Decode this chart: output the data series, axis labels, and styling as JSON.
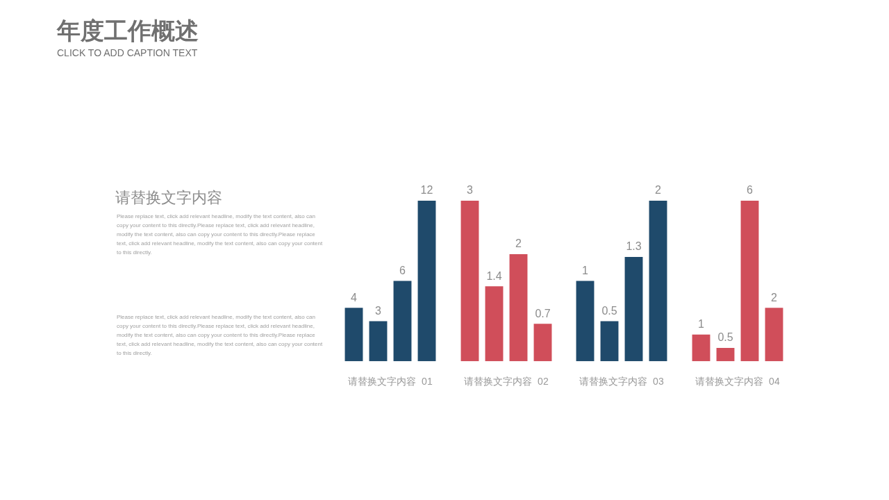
{
  "chart_data": [
    {
      "type": "other",
      "title": "年度工作概述",
      "subtitle": "CLICK TO ADD CAPTION TEXT",
      "annotations": [
        "请替换文字内容",
        "Please replace text, click add relevant headline, modify the text content, also can copy your content to this directly.Please replace text, click add relevant headline, modify the text content, also can copy your content to this directly.Please replace text, click add relevant headline, modify the text content, also can copy your content to this directly.",
        "Please replace text, click add relevant headline, modify the text content, also can copy your content to this directly.Please replace text, click add relevant headline, modify the text content, also can copy your content to this directly.Please replace text, click add relevant headline, modify the text content, also can copy your content to this directly."
      ]
    },
    {
      "type": "bar",
      "xlabel": "请替换文字内容  01",
      "categories": [
        null,
        null,
        null,
        null
      ],
      "values": [
        4,
        3,
        6,
        12
      ],
      "color": "#1f4a6b",
      "data_labels": true
    },
    {
      "type": "bar",
      "xlabel": "请替换文字内容  02",
      "categories": [
        null,
        null,
        null,
        null
      ],
      "values": [
        3,
        1.4,
        2,
        0.7
      ],
      "color": "#d04e5a",
      "data_labels": true
    },
    {
      "type": "bar",
      "xlabel": "请替换文字内容  03",
      "categories": [
        null,
        null,
        null,
        null
      ],
      "values": [
        1,
        0.5,
        1.3,
        2
      ],
      "color": "#1f4a6b",
      "data_labels": true
    },
    {
      "type": "bar",
      "xlabel": "请替换文字内容  04",
      "categories": [
        null,
        null,
        null,
        null
      ],
      "values": [
        1,
        0.5,
        6,
        2
      ],
      "color": "#d04e5a",
      "data_labels": true
    }
  ]
}
